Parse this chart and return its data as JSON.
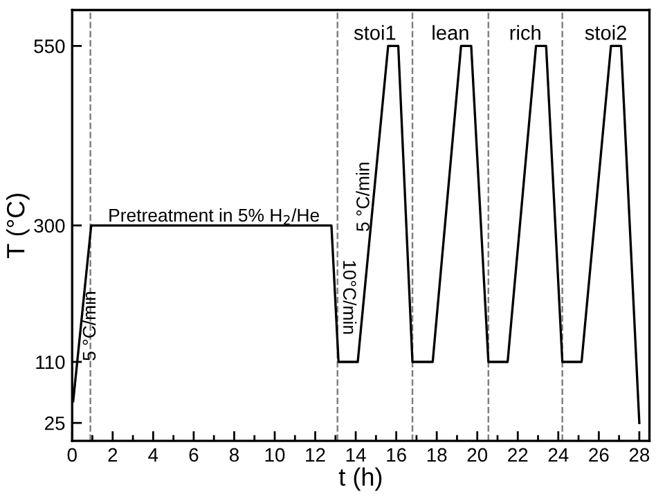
{
  "chart_data": {
    "type": "line",
    "xlabel": "t (h)",
    "ylabel": "T (°C)",
    "series": [
      {
        "color": "#000000",
        "x": [
          0.05,
          0.94,
          12.8,
          13.15,
          14.1,
          15.6,
          16.1,
          16.8,
          17.8,
          19.2,
          19.7,
          20.55,
          21.5,
          22.9,
          23.4,
          24.2,
          25.15,
          26.6,
          27.1,
          28.0
        ],
        "values": [
          55,
          300,
          300,
          110,
          110,
          550,
          550,
          110,
          110,
          550,
          550,
          110,
          110,
          550,
          550,
          110,
          110,
          550,
          550,
          25
        ]
      }
    ],
    "xlim": [
      0,
      28.5
    ],
    "ylim": [
      0,
      600
    ],
    "xticks": [
      0,
      {
        "value": 1,
        "label": null
      },
      2,
      {
        "value": 3,
        "label": null
      },
      4,
      {
        "value": 5,
        "label": null
      },
      6,
      {
        "value": 7,
        "label": null
      },
      8,
      {
        "value": 9,
        "label": null
      },
      10,
      {
        "value": 11,
        "label": null
      },
      12,
      {
        "value": 13,
        "label": null
      },
      14,
      {
        "value": 15,
        "label": null
      },
      16,
      {
        "value": 17,
        "label": null
      },
      18,
      {
        "value": 19,
        "label": null
      },
      20,
      {
        "value": 21,
        "label": null
      },
      22,
      {
        "value": 23,
        "label": null
      },
      24,
      {
        "value": 25,
        "label": null
      },
      26,
      {
        "value": 27,
        "label": null
      },
      28
    ],
    "yticks": [
      25,
      110,
      300,
      550
    ],
    "ref_lines": [
      {
        "axis": "x",
        "value": 0.9,
        "color": "#808080",
        "line_style": "dashed"
      },
      {
        "axis": "x",
        "value": 13.1,
        "color": "#808080",
        "line_style": "dashed"
      },
      {
        "axis": "x",
        "value": 16.8,
        "color": "#808080",
        "line_style": "dashed"
      },
      {
        "axis": "x",
        "value": 20.55,
        "color": "#808080",
        "line_style": "dashed"
      },
      {
        "axis": "x",
        "value": 24.2,
        "color": "#808080",
        "line_style": "dashed"
      }
    ],
    "annotations": [
      {
        "text": "Pretreatment in 5% H$_{2}$/He",
        "x": 7,
        "y": 300
      },
      {
        "text": "5 °C/min",
        "x": 0.5,
        "y": 160
      },
      {
        "text": "10°C/min",
        "x": 13.2,
        "y": 200
      },
      {
        "text": "5 °C/min",
        "x": 14.85,
        "y": 340
      },
      "stoi1",
      "lean",
      "rich",
      "stoi2"
    ],
    "line_style": "solid",
    "marker": "none",
    "grid": false
  }
}
